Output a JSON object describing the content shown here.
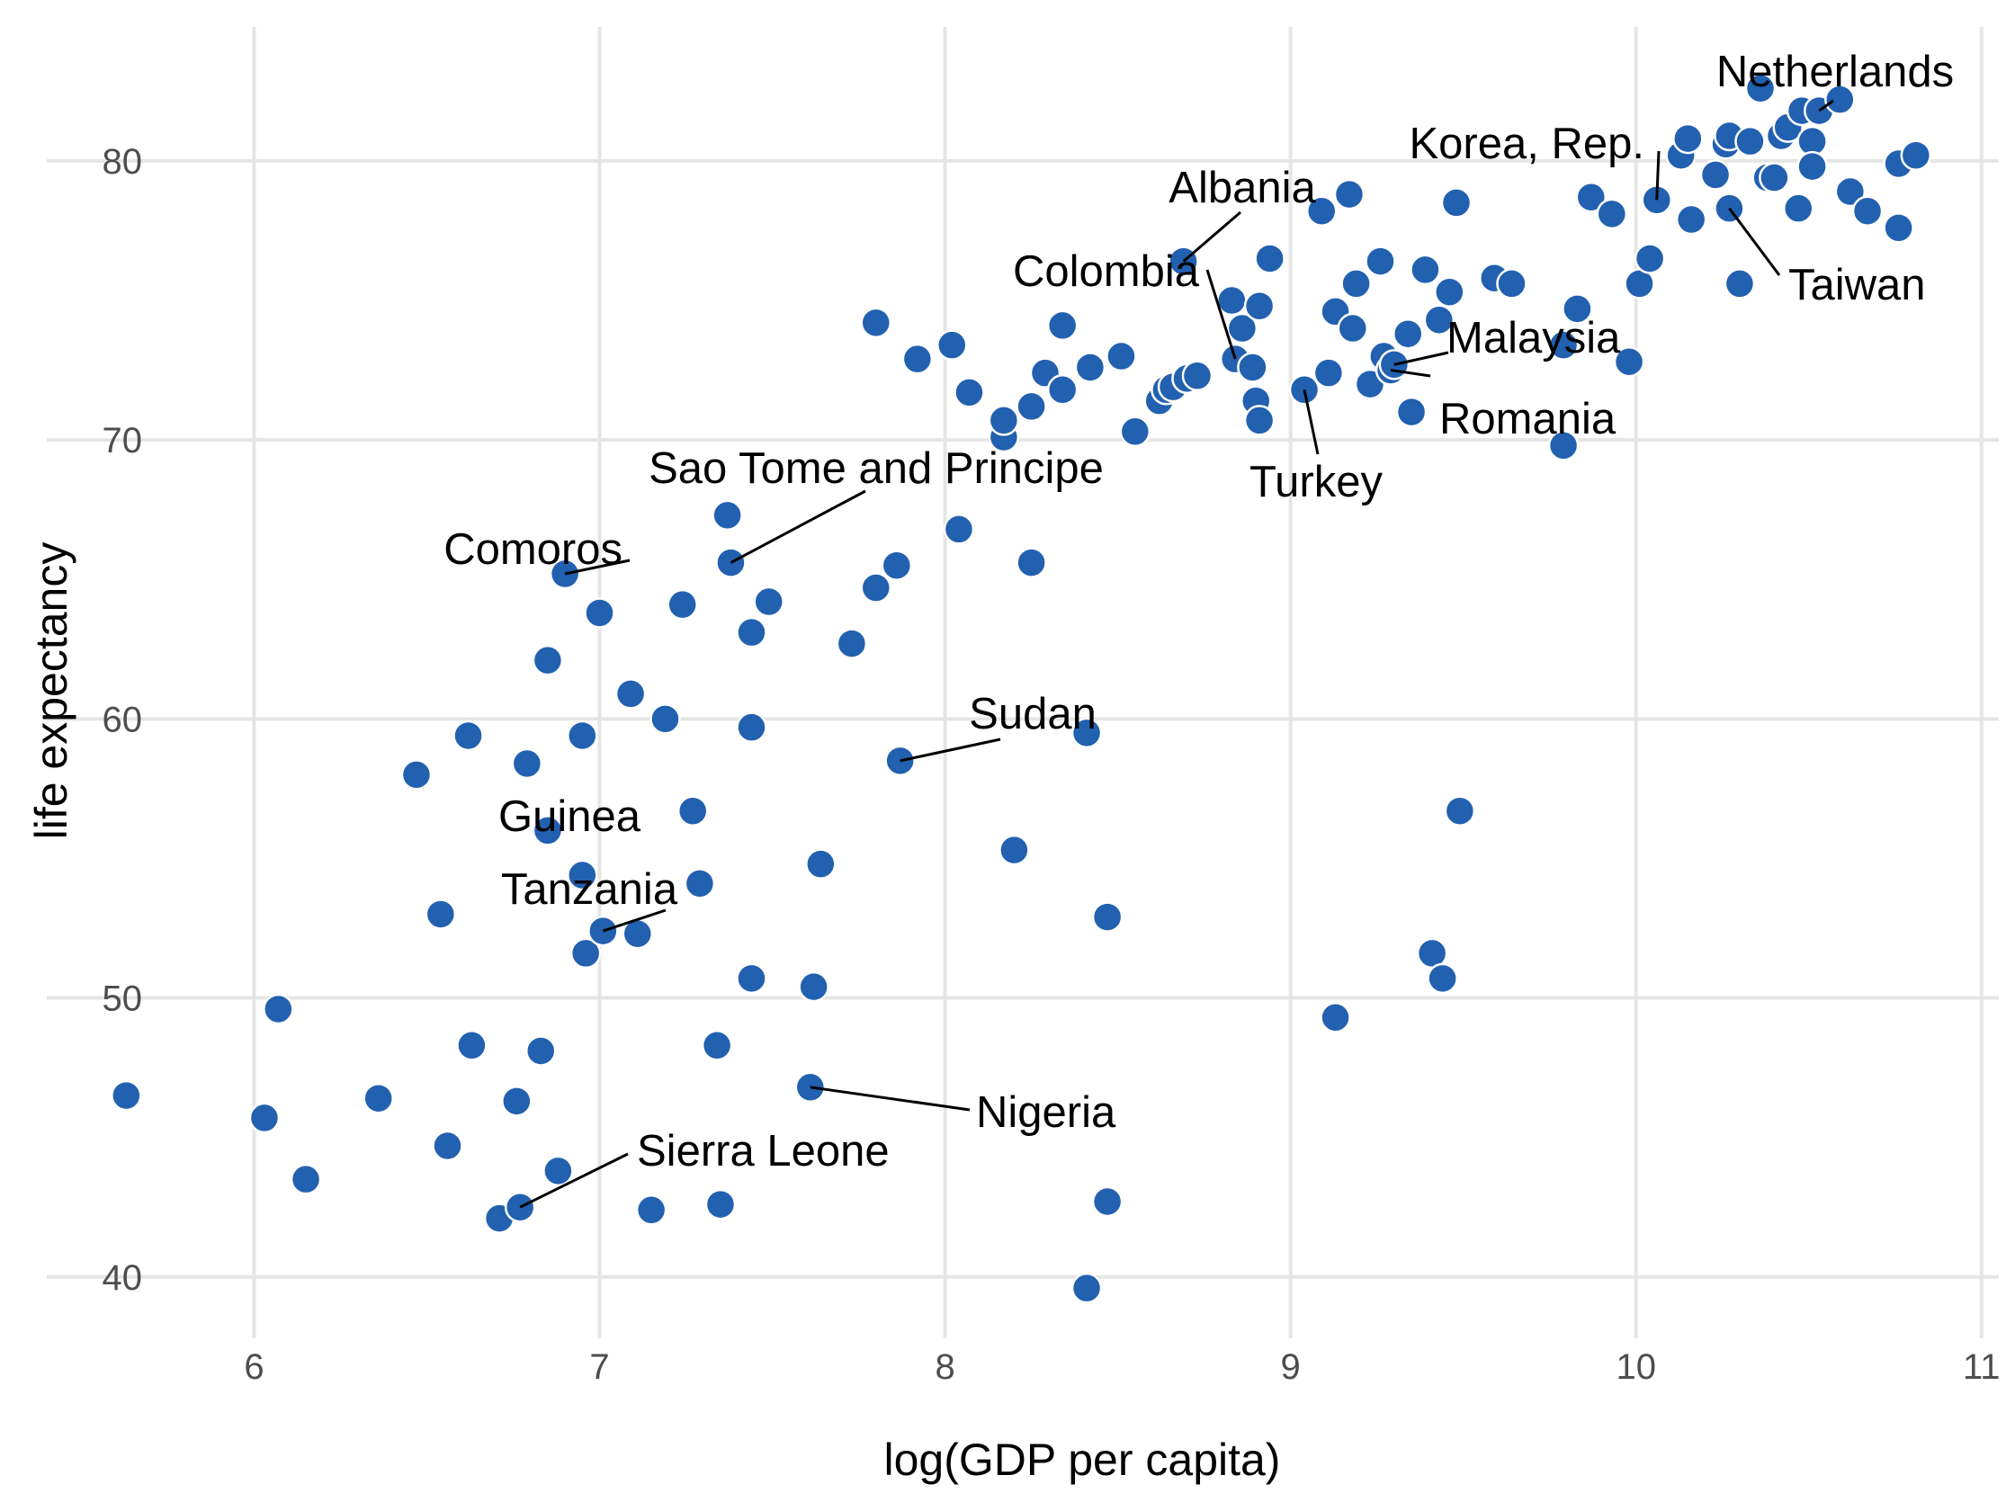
{
  "chart_data": {
    "type": "scatter",
    "xlabel": "log(GDP per capita)",
    "ylabel": "life expectancy",
    "xlim": [
      5.4,
      11.05
    ],
    "ylim": [
      37.8,
      84.8
    ],
    "xticks": [
      6,
      7,
      8,
      9,
      10,
      11
    ],
    "yticks": [
      40,
      50,
      60,
      70,
      80
    ],
    "grid": true,
    "point_color": "#2260b0",
    "points": [
      [
        5.63,
        46.5
      ],
      [
        6.03,
        45.7
      ],
      [
        6.07,
        49.6
      ],
      [
        6.15,
        43.5
      ],
      [
        6.36,
        46.4
      ],
      [
        6.47,
        58.0
      ],
      [
        6.54,
        53.0
      ],
      [
        6.56,
        44.7
      ],
      [
        6.62,
        59.4
      ],
      [
        6.63,
        48.3
      ],
      [
        6.71,
        42.1
      ],
      [
        6.76,
        46.3
      ],
      [
        6.77,
        42.5
      ],
      [
        6.79,
        58.4
      ],
      [
        6.83,
        48.1
      ],
      [
        6.85,
        62.1
      ],
      [
        6.85,
        56.0
      ],
      [
        6.88,
        43.8
      ],
      [
        6.9,
        65.2
      ],
      [
        6.95,
        59.4
      ],
      [
        6.95,
        54.4
      ],
      [
        6.96,
        51.6
      ],
      [
        7.0,
        63.8
      ],
      [
        7.01,
        52.4
      ],
      [
        7.09,
        60.9
      ],
      [
        7.11,
        52.3
      ],
      [
        7.15,
        42.4
      ],
      [
        7.19,
        60.0
      ],
      [
        7.24,
        64.1
      ],
      [
        7.27,
        56.7
      ],
      [
        7.29,
        54.1
      ],
      [
        7.34,
        48.3
      ],
      [
        7.35,
        42.6
      ],
      [
        7.37,
        67.3
      ],
      [
        7.38,
        65.6
      ],
      [
        7.44,
        63.1
      ],
      [
        7.44,
        59.7
      ],
      [
        7.44,
        50.7
      ],
      [
        7.49,
        64.2
      ],
      [
        7.61,
        46.8
      ],
      [
        7.62,
        50.4
      ],
      [
        7.64,
        54.8
      ],
      [
        7.73,
        62.7
      ],
      [
        7.8,
        64.7
      ],
      [
        7.8,
        74.2
      ],
      [
        7.86,
        65.5
      ],
      [
        7.87,
        58.5
      ],
      [
        7.92,
        72.9
      ],
      [
        8.02,
        73.4
      ],
      [
        8.04,
        66.8
      ],
      [
        8.07,
        71.7
      ],
      [
        8.17,
        70.1
      ],
      [
        8.17,
        70.7
      ],
      [
        8.2,
        55.3
      ],
      [
        8.25,
        65.6
      ],
      [
        8.25,
        71.2
      ],
      [
        8.29,
        72.4
      ],
      [
        8.34,
        74.1
      ],
      [
        8.34,
        71.8
      ],
      [
        8.41,
        59.5
      ],
      [
        8.41,
        39.6
      ],
      [
        8.42,
        72.6
      ],
      [
        8.47,
        52.9
      ],
      [
        8.47,
        42.7
      ],
      [
        8.51,
        73.0
      ],
      [
        8.55,
        70.3
      ],
      [
        8.62,
        71.4
      ],
      [
        8.64,
        71.8
      ],
      [
        8.66,
        71.9
      ],
      [
        8.69,
        76.4
      ],
      [
        8.7,
        72.2
      ],
      [
        8.73,
        72.3
      ],
      [
        8.83,
        75.0
      ],
      [
        8.84,
        72.9
      ],
      [
        8.86,
        74.0
      ],
      [
        8.89,
        72.6
      ],
      [
        8.9,
        71.4
      ],
      [
        8.91,
        74.8
      ],
      [
        8.91,
        70.7
      ],
      [
        8.94,
        76.5
      ],
      [
        9.04,
        71.8
      ],
      [
        9.09,
        78.2
      ],
      [
        9.11,
        72.4
      ],
      [
        9.13,
        74.6
      ],
      [
        9.13,
        49.3
      ],
      [
        9.17,
        78.8
      ],
      [
        9.18,
        74.0
      ],
      [
        9.19,
        75.6
      ],
      [
        9.23,
        72.0
      ],
      [
        9.26,
        76.4
      ],
      [
        9.27,
        73.0
      ],
      [
        9.29,
        72.5
      ],
      [
        9.3,
        72.7
      ],
      [
        9.34,
        73.8
      ],
      [
        9.35,
        71.0
      ],
      [
        9.39,
        76.1
      ],
      [
        9.41,
        51.6
      ],
      [
        9.43,
        74.3
      ],
      [
        9.44,
        50.7
      ],
      [
        9.46,
        75.3
      ],
      [
        9.48,
        78.5
      ],
      [
        9.49,
        56.7
      ],
      [
        9.59,
        75.8
      ],
      [
        9.64,
        75.6
      ],
      [
        9.79,
        73.4
      ],
      [
        9.79,
        69.8
      ],
      [
        9.83,
        74.7
      ],
      [
        9.87,
        78.7
      ],
      [
        9.93,
        78.1
      ],
      [
        9.98,
        72.8
      ],
      [
        10.01,
        75.6
      ],
      [
        10.04,
        76.5
      ],
      [
        10.06,
        78.6
      ],
      [
        10.13,
        80.2
      ],
      [
        10.15,
        80.8
      ],
      [
        10.16,
        77.9
      ],
      [
        10.23,
        79.5
      ],
      [
        10.26,
        80.6
      ],
      [
        10.27,
        78.3
      ],
      [
        10.27,
        80.9
      ],
      [
        10.3,
        75.6
      ],
      [
        10.33,
        80.7
      ],
      [
        10.36,
        82.6
      ],
      [
        10.38,
        79.4
      ],
      [
        10.4,
        79.4
      ],
      [
        10.42,
        80.9
      ],
      [
        10.44,
        81.2
      ],
      [
        10.47,
        78.3
      ],
      [
        10.48,
        81.8
      ],
      [
        10.51,
        80.7
      ],
      [
        10.51,
        79.8
      ],
      [
        10.53,
        81.8
      ],
      [
        10.59,
        82.2
      ],
      [
        10.62,
        78.9
      ],
      [
        10.67,
        78.2
      ],
      [
        10.76,
        79.9
      ],
      [
        10.76,
        77.6
      ],
      [
        10.81,
        80.2
      ]
    ],
    "annotations": [
      {
        "text": "Netherlands",
        "x": 10.53,
        "y": 81.8
      },
      {
        "text": "Korea, Rep.",
        "x": 10.06,
        "y": 78.6
      },
      {
        "text": "Albania",
        "x": 8.69,
        "y": 76.4
      },
      {
        "text": "Taiwan",
        "x": 10.27,
        "y": 78.3
      },
      {
        "text": "Colombia",
        "x": 8.84,
        "y": 72.9
      },
      {
        "text": "Malaysia",
        "x": 9.3,
        "y": 72.7
      },
      {
        "text": "Romania",
        "x": 9.29,
        "y": 72.5
      },
      {
        "text": "Turkey",
        "x": 9.04,
        "y": 71.8
      },
      {
        "text": "Sao Tome and Principe",
        "x": 7.38,
        "y": 65.6
      },
      {
        "text": "Comoros",
        "x": 6.9,
        "y": 65.2
      },
      {
        "text": "Sudan",
        "x": 7.87,
        "y": 58.5
      },
      {
        "text": "Guinea",
        "x": 6.85,
        "y": 56.0
      },
      {
        "text": "Tanzania",
        "x": 7.01,
        "y": 52.4
      },
      {
        "text": "Nigeria",
        "x": 7.61,
        "y": 46.8
      },
      {
        "text": "Sierra Leone",
        "x": 6.77,
        "y": 42.5
      }
    ]
  }
}
